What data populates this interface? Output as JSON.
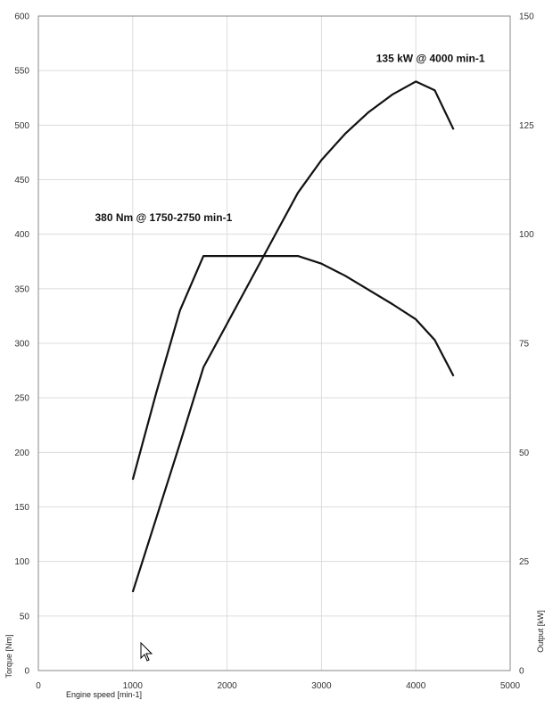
{
  "chart_data": {
    "type": "line",
    "x_label": "Engine speed [min-1]",
    "y_left_label": "Torque [Nm]",
    "y_right_label": "Output [kW]",
    "xlim": [
      0,
      5000
    ],
    "ylim_left": [
      0,
      600
    ],
    "ylim_right": [
      0,
      150
    ],
    "x_ticks": [
      0,
      1000,
      2000,
      3000,
      4000,
      5000
    ],
    "y_left_ticks": [
      0,
      50,
      100,
      150,
      200,
      250,
      300,
      350,
      400,
      450,
      500,
      550,
      600
    ],
    "y_right_ticks": [
      0,
      25,
      50,
      75,
      100,
      125,
      150
    ],
    "grid": true,
    "series": [
      {
        "axis": "left",
        "points": [
          [
            1000,
            175
          ],
          [
            1250,
            255
          ],
          [
            1500,
            330
          ],
          [
            1750,
            380
          ],
          [
            2000,
            380
          ],
          [
            2250,
            380
          ],
          [
            2500,
            380
          ],
          [
            2750,
            380
          ],
          [
            3000,
            373
          ],
          [
            3250,
            362
          ],
          [
            3500,
            349
          ],
          [
            3750,
            336
          ],
          [
            4000,
            322
          ],
          [
            4200,
            303
          ],
          [
            4400,
            270
          ]
        ]
      },
      {
        "axis": "right",
        "points": [
          [
            1000,
            18
          ],
          [
            1250,
            35
          ],
          [
            1500,
            52
          ],
          [
            1750,
            69.5
          ],
          [
            2000,
            79.5
          ],
          [
            2250,
            89.5
          ],
          [
            2500,
            99.5
          ],
          [
            2750,
            109.5
          ],
          [
            3000,
            117
          ],
          [
            3250,
            123
          ],
          [
            3500,
            128
          ],
          [
            3750,
            132
          ],
          [
            4000,
            135
          ],
          [
            4200,
            133
          ],
          [
            4400,
            124
          ]
        ]
      }
    ],
    "annotations": [
      {
        "text": "135 kW @ 4000 min-1",
        "x": 3580,
        "y_left": 558
      },
      {
        "text": "380 Nm @ 1750-2750 min-1",
        "x": 600,
        "y_left": 412
      }
    ]
  }
}
